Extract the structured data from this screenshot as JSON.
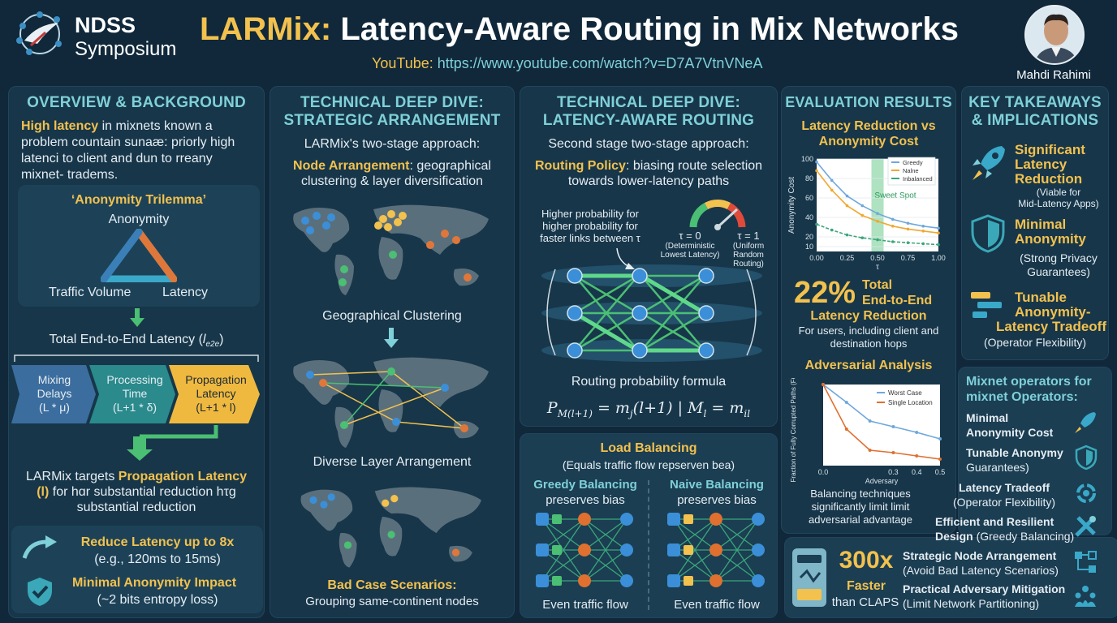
{
  "header": {
    "logo_line1": "NDSS",
    "logo_line2": "Symposium",
    "title_accent": "LARMix:",
    "title_rest": " Latency-Aware Routing in Mix Networks",
    "youtube_label": "YouTube:",
    "youtube_url": " https://www.youtube.com/watch?v=D7A7VtnVNeA",
    "author": "Mahdi Rahimi"
  },
  "overview": {
    "heading": "OVERVIEW & BACKGROUND",
    "intro_bold": "High latency",
    "intro_rest": " in mixnets known a problem countain sunaæ: priorly high latenci to client and dun to rreany mixnet- tradems.",
    "trilemma_title": "‘Anonymity Trilemma’",
    "trilemma_top": "Anonymity",
    "trilemma_left": "Traffic Volume",
    "trilemma_right": "Latency",
    "e2e_label": "Total End-to-End Latency (",
    "e2e_var": "l",
    "e2e_sub": "e2e",
    "e2e_close": ")",
    "box1_line1": "Mixing",
    "box1_line2": "Delays",
    "box1_line3": "(L * μ)",
    "box2_line1": "Processing",
    "box2_line2": "Time",
    "box2_line3": "(L+1 * δ)",
    "box3_line1": "Propagation",
    "box3_line2": "Latency",
    "box3_line3": "(L+1 * l)",
    "targets_pre": "LARMix targets ",
    "targets_bold": "Propagation Latency",
    "targets_var": "(l)",
    "targets_rest": " for hɑr substantial reduction hτg substantial reduction",
    "reduce_title": "Reduce Latency up to 8x",
    "reduce_sub": "(e.g., 120ms to 15ms)",
    "minimal_title": "Minimal Anonymity Impact",
    "minimal_sub": "(~2 bits entropy loss)"
  },
  "arrangement": {
    "heading_line1": "TECHNICAL DEEP DIVE:",
    "heading_line2": "STRATEGIC ARRANGEMENT",
    "subtitle": "LARMix's two-stage approach:",
    "node_bold": "Node Arrangement",
    "node_rest": ": geographical clustering & layer diversification",
    "map1_caption": "Geographical Clustering",
    "map2_caption": "Diverse Layer Arrangement",
    "map3_caption_bold": "Bad Case Scenarios:",
    "map3_caption": "Grouping same-continent nodes"
  },
  "routing": {
    "heading_line1": "TECHNICAL DEEP DIVE:",
    "heading_line2": "LATENCY-AWARE ROUTING",
    "subtitle": "Second stage two-stage approach:",
    "policy_bold": "Routing Policy",
    "policy_rest": ": biasing route selection towards lower-latency paths",
    "prob_line1": "Higher probability for",
    "prob_line2": "higher probability for",
    "prob_line3": "faster links between τ",
    "tau0": "τ = 0",
    "tau0_sub1": "(Deterministic",
    "tau0_sub2": "Lowest Latency)",
    "tau1": "τ = 1",
    "tau1_sub1": "(Uniform",
    "tau1_sub2": "Random",
    "tau1_sub3": "Routing)",
    "formula_label": "Routing probability formula",
    "formula": "P",
    "formula_sub": "M(l+1)",
    "formula_rest": " = m",
    "formula_sub2": "j",
    "formula_rest2": "(l+1) | M",
    "formula_sub3": "l",
    "formula_rest3": " = m",
    "formula_sub4": "il"
  },
  "load_balancing": {
    "heading": "Load Balancing",
    "subtitle": "(Equals traffic flow repserven bea)",
    "greedy_title": "Greedy Balancing",
    "greedy_sub": "preserves bias",
    "naive_title": "Naive Balancing",
    "naive_sub": "preserves bias",
    "greedy_caption": "Even traffic flow",
    "naive_caption": "Even traffic flow"
  },
  "evaluation": {
    "heading": "EVALUATION RESULTS",
    "chart1_title_line1": "Latency Reduction vs",
    "chart1_title_line2": "Anonymity Cost",
    "sweet_spot": "Sweet Spot",
    "stat_value": "22%",
    "stat_line1": "Total",
    "stat_line2": "End-to-End",
    "stat_line3": "Latency Reduction",
    "stat_note": "For users, including client and destination hops",
    "adv_title": "Adversarial Analysis",
    "adv_note": "Balancing techniques significantly limit limit adversarial advantage",
    "fast_value": "300x",
    "fast_line1": "Faster",
    "fast_line2": "than CLAPS"
  },
  "chart_data": [
    {
      "type": "line",
      "title": "",
      "xlabel": "τ",
      "ylabel": "Anonymity Cost",
      "x": [
        0.0,
        0.125,
        0.25,
        0.375,
        0.5,
        0.625,
        0.75,
        0.875,
        1.0
      ],
      "x_ticks": [
        "0.00",
        "0.25",
        "0.50",
        "0.75",
        "1.00"
      ],
      "y_ticks": [
        "100",
        "80",
        "60",
        "40",
        "20",
        "10"
      ],
      "xlim": [
        0,
        1
      ],
      "ylim": [
        5,
        100
      ],
      "legend": "top-right",
      "series": [
        {
          "name": "Greedy",
          "color": "#6fa8dc",
          "values": [
            97,
            78,
            62,
            52,
            44,
            38,
            34,
            31,
            29
          ]
        },
        {
          "name": "Nalne",
          "color": "#f0a830",
          "values": [
            88,
            68,
            52,
            42,
            36,
            31,
            28,
            26,
            24
          ]
        },
        {
          "name": "Inbalanced",
          "color": "#3aa67a",
          "values": [
            33,
            27,
            22,
            19,
            17,
            15,
            14,
            13,
            12
          ]
        }
      ]
    },
    {
      "type": "line",
      "title": "",
      "xlabel": "Adversary",
      "ylabel": "Fraction of Fully Corrupted Paths (FCP)",
      "x": [
        0.0,
        0.1,
        0.2,
        0.3,
        0.4,
        0.5
      ],
      "x_ticks": [
        "0.0",
        "0.3",
        "0.4",
        "0.5"
      ],
      "xlim": [
        0,
        0.5
      ],
      "ylim": [
        0,
        1
      ],
      "legend": "top-right",
      "series": [
        {
          "name": "Worst Case",
          "color": "#6fa8dc",
          "values": [
            1.0,
            0.78,
            0.55,
            0.48,
            0.41,
            0.33
          ]
        },
        {
          "name": "Single Location",
          "color": "#e07030",
          "values": [
            1.0,
            0.45,
            0.19,
            0.16,
            0.12,
            0.08
          ]
        }
      ]
    }
  ],
  "takeaways": {
    "heading_line1": "KEY TAKEAWAYS",
    "heading_line2": "& IMPLICATIONS",
    "t1_line1": "Significant",
    "t1_line2": "Latency",
    "t1_line3": "Reduction",
    "t1_sub1": "(Viable for",
    "t1_sub2": "Mid-Latency Apps)",
    "t2_line1": "Minimal",
    "t2_line2": "Anonymity",
    "t2_sub1": "(Strong Privacy",
    "t2_sub2": "Guarantees)",
    "t3_line1": "Tunable",
    "t3_line2": "Anonymity-",
    "t3_line3": "Latency Tradeoff",
    "t3_sub": "(Operator Flexibility)"
  },
  "operators": {
    "heading_line1": "Mixnet operators for",
    "heading_line2": "mixnet Operators:",
    "i1_line1": "Minimal",
    "i1_line2": "Anonymity Cost",
    "i2_line1": "Tunable Anonymy",
    "i2_line2": "Guarantees)",
    "i3_line1": "Latency Tradeoff",
    "i3_line2": "(Operator Flexibility)",
    "i4_line1": "Efficient and Resilient",
    "i4_line2": "Design",
    "i4_line2b": " (Greedy Balancing)",
    "i5_line1": "Strategic Node Arrangement",
    "i5_line2": "(Avoid Bad Latency Scenarios)",
    "i6_line1": "Practical Adversary Mitigation",
    "i6_line2": "(Limit Network Partitioning)"
  },
  "colors": {
    "accent_yellow": "#f2c14e",
    "accent_teal": "#7fd0d8",
    "panel_bg": "#17364a",
    "page_bg": "#10283a"
  }
}
